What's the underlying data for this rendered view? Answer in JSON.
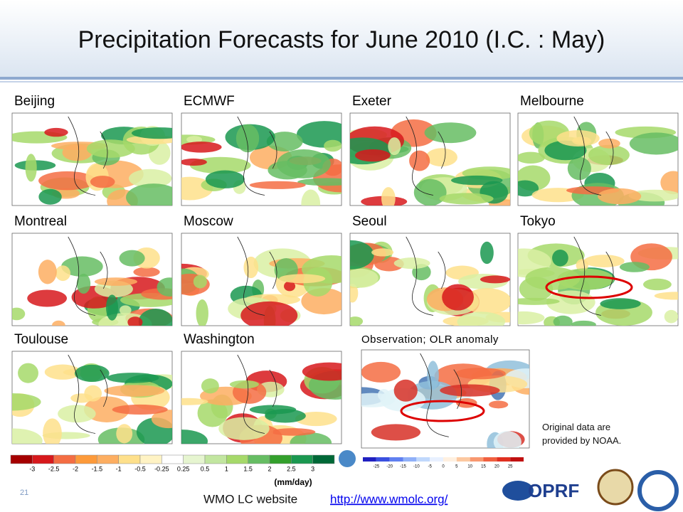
{
  "title": "Precipitation Forecasts for June 2010 (I.C. : May)",
  "panels": [
    "Beijing",
    "ECMWF",
    "Exeter",
    "Melbourne",
    "Montreal",
    "Moscow",
    "Seoul",
    "Tokyo",
    "Toulouse",
    "Washington"
  ],
  "observation": "Observation; OLR anomaly",
  "note": "Original data are provided by NOAA.",
  "colorbar": {
    "labels": [
      "-3",
      "-2.5",
      "-2",
      "-1.5",
      "-1",
      "-0.5",
      "-0.25",
      "0.25",
      "0.5",
      "1",
      "1.5",
      "2",
      "2.5",
      "3"
    ],
    "unit": "(mm/day)"
  },
  "olr_colorbar": {
    "labels": [
      "-25",
      "-20",
      "-15",
      "-10",
      "-5",
      "0",
      "5",
      "10",
      "15",
      "20",
      "25"
    ]
  },
  "footer": {
    "page": "21",
    "website": "WMO LC website",
    "link": "http://www.wmolc.org/",
    "logo": "OPRF"
  }
}
